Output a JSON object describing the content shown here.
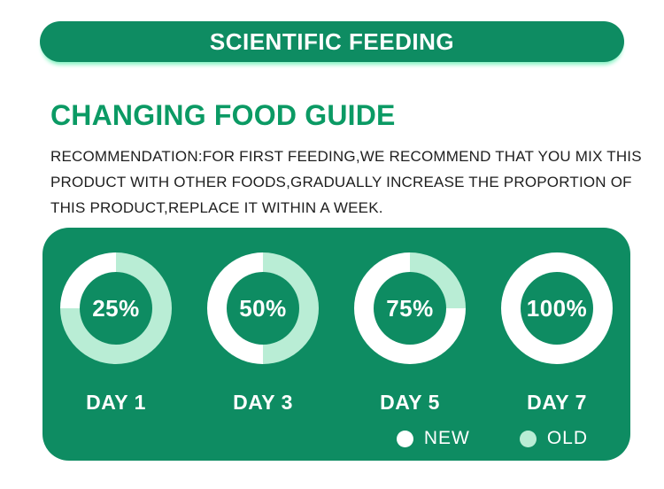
{
  "banner": {
    "label": "SCIENTIFIC FEEDING"
  },
  "heading": {
    "title": "CHANGING FOOD GUIDE"
  },
  "description_lines": [
    "RECOMMENDATION:FOR FIRST FEEDING,WE RECOMMEND THAT YOU MIX THIS",
    "PRODUCT WITH OTHER FOODS,GRADUALLY INCREASE THE PROPORTION OF",
    "THIS PRODUCT,REPLACE IT WITHIN A WEEK."
  ],
  "colors": {
    "green": "#0E8C62",
    "title_green": "#0B9A64",
    "mint": "#B9EDD5",
    "white": "#FFFFFF",
    "glow": "#86F2C3",
    "text_dark": "#1E1E1E"
  },
  "chart_data": {
    "type": "pie",
    "subtype": "donut-progression",
    "title": "CHANGING FOOD GUIDE",
    "units": "%",
    "legend_position": "bottom-right",
    "legend": [
      {
        "name": "NEW",
        "color": "#FFFFFF"
      },
      {
        "name": "OLD",
        "color": "#B9EDD5"
      }
    ],
    "donuts": [
      {
        "label": "DAY 1",
        "display": "25%",
        "new_pct": 25,
        "old_pct": 75
      },
      {
        "label": "DAY 3",
        "display": "50%",
        "new_pct": 50,
        "old_pct": 50
      },
      {
        "label": "DAY 5",
        "display": "75%",
        "new_pct": 75,
        "old_pct": 25
      },
      {
        "label": "DAY 7",
        "display": "100%",
        "new_pct": 100,
        "old_pct": 0
      }
    ]
  }
}
